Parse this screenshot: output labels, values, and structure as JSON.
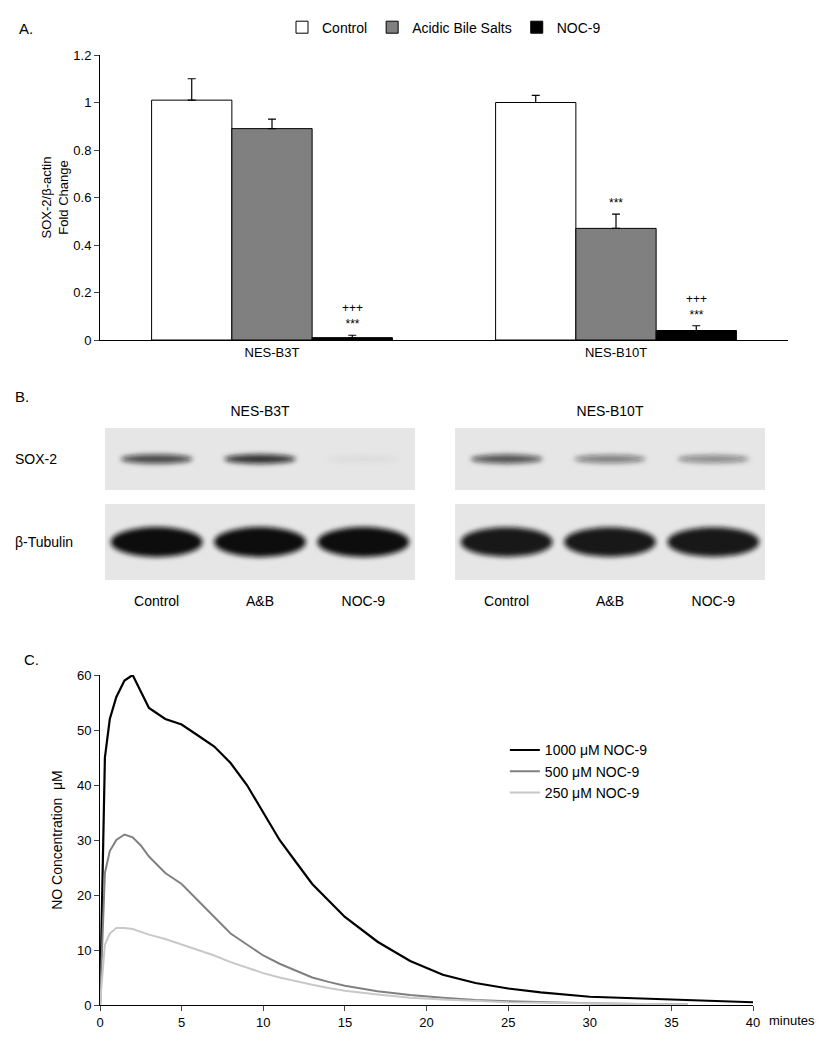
{
  "chart_data": [
    {
      "type": "bar",
      "label": "A.",
      "categories": [
        "NES-B3T",
        "NES-B10T"
      ],
      "y_label": [
        "SOX-2/β-actin",
        "Fold Change"
      ],
      "ylim": [
        0,
        1.2
      ],
      "yticks": [
        0,
        0.2,
        0.4,
        0.6,
        0.8,
        1,
        1.2
      ],
      "grid": false,
      "legend": "top",
      "series": [
        {
          "name": "Control",
          "color": "#ffffff",
          "values": [
            1.01,
            1.0
          ],
          "errors": [
            0.09,
            0.03
          ]
        },
        {
          "name": "Acidic Bile Salts",
          "color": "#808080",
          "values": [
            0.89,
            0.47
          ],
          "errors": [
            0.04,
            0.06
          ]
        },
        {
          "name": "NOC-9",
          "color": "#000000",
          "values": [
            0.01,
            0.04
          ],
          "errors": [
            0.01,
            0.02
          ]
        }
      ],
      "annotations": [
        {
          "category": "NES-B3T",
          "series": "NOC-9",
          "texts": [
            "+++",
            "***"
          ]
        },
        {
          "category": "NES-B10T",
          "series": "Acidic Bile Salts",
          "texts": [
            "***"
          ]
        },
        {
          "category": "NES-B10T",
          "series": "NOC-9",
          "texts": [
            "+++",
            "***"
          ]
        }
      ]
    },
    {
      "type": "line",
      "label": "C.",
      "x": [
        0,
        0.3,
        0.6,
        1,
        1.5,
        2,
        2.5,
        3,
        4,
        5,
        6,
        7,
        8,
        9,
        10,
        11,
        12,
        13,
        14,
        15,
        17,
        19,
        21,
        23,
        25,
        27,
        30,
        33,
        36,
        40
      ],
      "x_label": "minutes",
      "y_label": "NO Concentration  μM",
      "xlim": [
        0,
        40
      ],
      "xticks": [
        0,
        5,
        10,
        15,
        20,
        25,
        30,
        35,
        40
      ],
      "ylim": [
        0,
        60
      ],
      "yticks": [
        0,
        10,
        20,
        30,
        40,
        50,
        60
      ],
      "grid": false,
      "legend": "right",
      "series": [
        {
          "name": "1000 μM NOC-9",
          "color": "#000000",
          "values": [
            0,
            45,
            52,
            56,
            59,
            60,
            57,
            54,
            52,
            51,
            49,
            47,
            44,
            40,
            35,
            30,
            26,
            22,
            19,
            16,
            11.5,
            8,
            5.5,
            4,
            3,
            2.3,
            1.5,
            1.2,
            0.9,
            0.5
          ]
        },
        {
          "name": "500 μM NOC-9",
          "color": "#808080",
          "values": [
            0,
            24,
            28,
            30,
            31,
            30.5,
            29,
            27,
            24,
            22,
            19,
            16,
            13,
            11,
            9,
            7.5,
            6.2,
            5,
            4.2,
            3.5,
            2.5,
            1.8,
            1.3,
            0.9,
            0.7,
            0.5,
            0.3,
            0.2,
            0.1,
            null
          ]
        },
        {
          "name": "250 μM NOC-9",
          "color": "#c8c8c8",
          "values": [
            0,
            11,
            13,
            14,
            14,
            13.8,
            13.3,
            12.8,
            12,
            11,
            10,
            9,
            7.8,
            6.8,
            5.8,
            5,
            4.3,
            3.7,
            3.1,
            2.6,
            1.9,
            1.3,
            1,
            0.7,
            0.5,
            0.4,
            0.3,
            0.2,
            0.1,
            null
          ]
        }
      ]
    }
  ],
  "blot": {
    "label": "B.",
    "rows": [
      "SOX-2",
      "β-Tubulin"
    ],
    "lanes": [
      "Control",
      "A&B",
      "NOC-9"
    ],
    "panels": [
      {
        "title": "NES-B3T",
        "band_intensity": [
          [
            0.75,
            0.85,
            0.05
          ],
          [
            1,
            1,
            1
          ]
        ]
      },
      {
        "title": "NES-B10T",
        "band_intensity": [
          [
            0.7,
            0.5,
            0.45
          ],
          [
            0.95,
            0.95,
            0.95
          ]
        ]
      }
    ]
  }
}
